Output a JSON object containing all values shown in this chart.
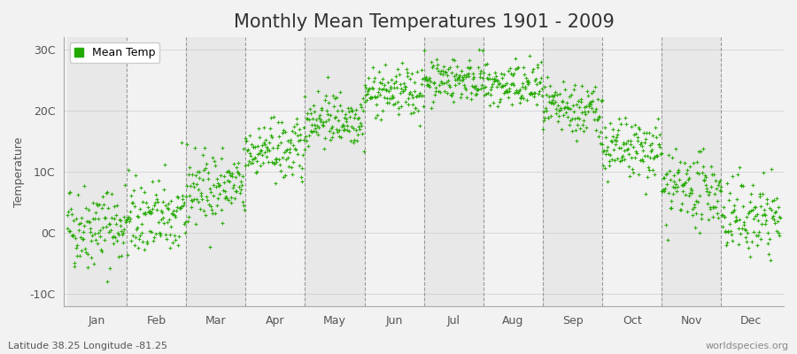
{
  "title": "Monthly Mean Temperatures 1901 - 2009",
  "ylabel": "Temperature",
  "bottom_left_label": "Latitude 38.25 Longitude -81.25",
  "bottom_right_label": "worldspecies.org",
  "legend_label": "Mean Temp",
  "dot_color": "#22aa00",
  "background_color": "#f2f2f2",
  "plot_bg_color": "#f2f2f2",
  "grid_color": "#999999",
  "ylim": [
    -12,
    32
  ],
  "yticks": [
    -10,
    0,
    10,
    20,
    30
  ],
  "ytick_labels": [
    "-10C",
    "0C",
    "10C",
    "20C",
    "30C"
  ],
  "months": [
    "Jan",
    "Feb",
    "Mar",
    "Apr",
    "May",
    "Jun",
    "Jul",
    "Aug",
    "Sep",
    "Oct",
    "Nov",
    "Dec"
  ],
  "mean_temps": [
    1.2,
    2.5,
    7.5,
    13.5,
    18.8,
    23.0,
    25.2,
    24.0,
    20.0,
    13.5,
    7.0,
    2.5
  ],
  "std_temps": [
    3.5,
    3.2,
    3.0,
    2.5,
    2.2,
    2.0,
    1.8,
    2.0,
    2.2,
    2.5,
    2.8,
    3.2
  ],
  "n_years": 109,
  "year_start": 1901,
  "seed": 42,
  "dot_size": 6,
  "dot_alpha": 0.9,
  "title_fontsize": 15,
  "label_fontsize": 9,
  "tick_fontsize": 9,
  "legend_fontsize": 9
}
